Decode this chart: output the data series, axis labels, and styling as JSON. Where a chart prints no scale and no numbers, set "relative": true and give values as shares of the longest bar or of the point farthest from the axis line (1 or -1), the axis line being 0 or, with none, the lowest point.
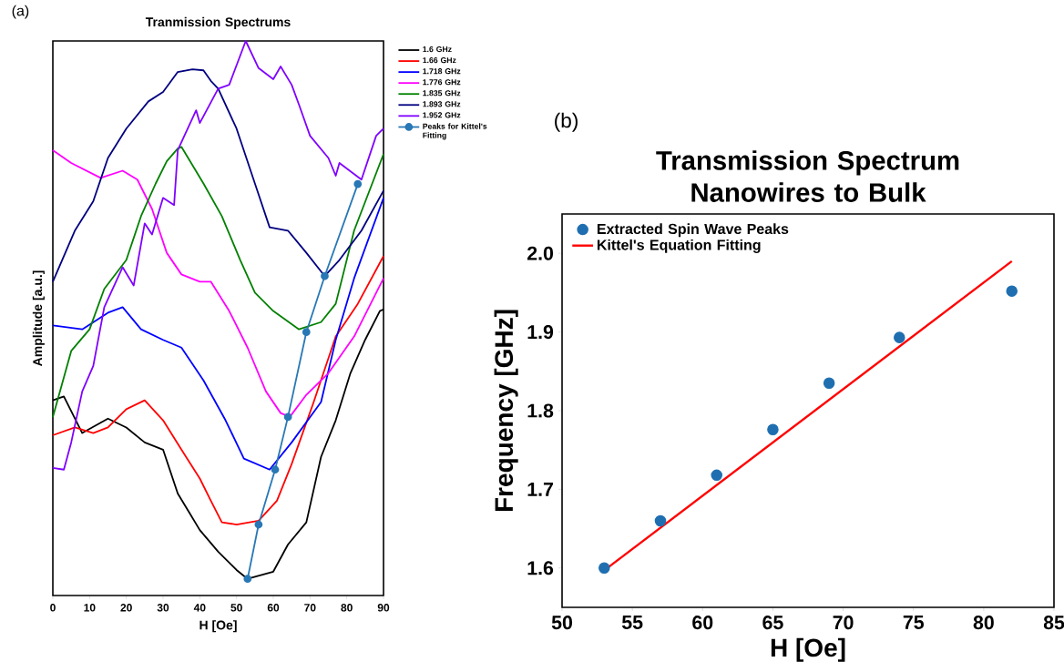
{
  "chart_data": [
    {
      "type": "line",
      "title": "Tranmission Spectrums",
      "xlabel": "H [Oe]",
      "ylabel": "Amplitude [a.u.]",
      "annotations": [
        "(a)"
      ],
      "relative": true,
      "tick_labels": "x",
      "legend": "right",
      "xlim": [
        0,
        90
      ],
      "xticks": [
        0,
        10,
        20,
        30,
        40,
        50,
        60,
        70,
        80,
        90
      ],
      "series": [
        {
          "name": "1.6 GHz",
          "color": "#000000",
          "x": [
            0,
            3,
            8,
            15,
            20,
            25,
            30,
            34,
            37,
            40,
            45,
            50,
            53,
            60,
            64,
            69,
            73,
            77,
            81,
            85,
            89,
            90
          ],
          "values": [
            0.352,
            0.359,
            0.293,
            0.319,
            0.303,
            0.276,
            0.263,
            0.184,
            0.151,
            0.118,
            0.079,
            0.046,
            0.03,
            0.043,
            0.092,
            0.132,
            0.25,
            0.316,
            0.401,
            0.461,
            0.513,
            0.516
          ]
        },
        {
          "name": "1.66 GHz",
          "color": "#ff0000",
          "x": [
            0,
            6,
            11,
            15,
            20,
            25,
            30,
            35,
            40,
            43,
            46,
            50,
            56,
            61,
            65,
            71,
            77,
            83,
            90
          ],
          "values": [
            0.289,
            0.303,
            0.293,
            0.303,
            0.336,
            0.352,
            0.316,
            0.263,
            0.211,
            0.171,
            0.132,
            0.128,
            0.135,
            0.171,
            0.237,
            0.349,
            0.467,
            0.526,
            0.612
          ]
        },
        {
          "name": "1.718 GHz",
          "color": "#0000ff",
          "x": [
            0,
            8,
            15,
            19,
            24,
            30,
            35,
            41,
            47,
            52,
            59,
            65,
            73,
            77,
            82,
            90
          ],
          "values": [
            0.487,
            0.48,
            0.51,
            0.52,
            0.48,
            0.461,
            0.447,
            0.388,
            0.316,
            0.247,
            0.227,
            0.276,
            0.349,
            0.461,
            0.572,
            0.717
          ]
        },
        {
          "name": "1.776 GHz",
          "color": "#ff00ff",
          "x": [
            0,
            5,
            13,
            19,
            23,
            27,
            31,
            35,
            40,
            43,
            48,
            53,
            58,
            62,
            64.5,
            69,
            75,
            82,
            90
          ],
          "values": [
            0.803,
            0.78,
            0.753,
            0.766,
            0.75,
            0.697,
            0.618,
            0.579,
            0.566,
            0.566,
            0.513,
            0.447,
            0.368,
            0.329,
            0.322,
            0.362,
            0.401,
            0.467,
            0.572
          ]
        },
        {
          "name": "1.835 GHz",
          "color": "#008000",
          "x": [
            0,
            5,
            10,
            14,
            20,
            24,
            28,
            31,
            34,
            35,
            41,
            46,
            51,
            55,
            60,
            67,
            73,
            77,
            82,
            90
          ],
          "values": [
            0.322,
            0.441,
            0.48,
            0.553,
            0.605,
            0.684,
            0.743,
            0.783,
            0.806,
            0.809,
            0.743,
            0.684,
            0.605,
            0.546,
            0.513,
            0.48,
            0.493,
            0.526,
            0.658,
            0.796
          ]
        },
        {
          "name": "1.893 GHz",
          "color": "#000080",
          "x": [
            0,
            6,
            11,
            15,
            20,
            26,
            30,
            34,
            38,
            41,
            43,
            45,
            50,
            55,
            59,
            64,
            69,
            74,
            78,
            84,
            90
          ],
          "values": [
            0.566,
            0.658,
            0.711,
            0.789,
            0.842,
            0.891,
            0.908,
            0.944,
            0.949,
            0.947,
            0.928,
            0.914,
            0.842,
            0.743,
            0.664,
            0.658,
            0.618,
            0.576,
            0.605,
            0.658,
            0.73
          ]
        },
        {
          "name": "1.952 GHz",
          "color": "#8000ff",
          "x": [
            0,
            3,
            5,
            8,
            11,
            14,
            19,
            22,
            25,
            27,
            30,
            33,
            34,
            39,
            40,
            45,
            48,
            52.5,
            56,
            60,
            62,
            65,
            67,
            70,
            75,
            77,
            78,
            84,
            88,
            90
          ],
          "values": [
            0.23,
            0.227,
            0.276,
            0.368,
            0.414,
            0.52,
            0.592,
            0.559,
            0.671,
            0.651,
            0.717,
            0.704,
            0.803,
            0.875,
            0.852,
            0.914,
            0.921,
            1.0,
            0.951,
            0.931,
            0.954,
            0.921,
            0.885,
            0.829,
            0.789,
            0.757,
            0.78,
            0.75,
            0.829,
            0.842
          ]
        },
        {
          "name": "Peaks for Kittel's Fitting",
          "color": "#2878b5",
          "marker": "circle",
          "x": [
            53,
            56,
            60.5,
            64,
            69,
            74,
            83
          ],
          "values": [
            0.03,
            0.128,
            0.227,
            0.322,
            0.475,
            0.576,
            0.742
          ]
        }
      ]
    },
    {
      "type": "scatter",
      "title": "Transmission Spectrum Nanowires to Bulk",
      "xlabel": "H [Oe]",
      "ylabel": "Frequency [GHz]",
      "annotations": [
        "(b)"
      ],
      "legend": "top left",
      "xlim": [
        50,
        85
      ],
      "xticks": [
        50,
        55,
        60,
        65,
        70,
        75,
        80,
        85
      ],
      "ylim": [
        1.55,
        2.05
      ],
      "yticks": [
        1.6,
        1.7,
        1.8,
        1.9,
        {
          "value": 2.0,
          "label": "2.0"
        }
      ],
      "series": [
        {
          "name": "Extracted Spin Wave Peaks",
          "color": "#1f6fb0",
          "type": "scatter",
          "marker": "circle",
          "x": [
            53,
            57,
            61,
            65,
            69,
            74,
            82
          ],
          "values": [
            1.6,
            1.66,
            1.718,
            1.776,
            1.835,
            1.893,
            1.952
          ]
        },
        {
          "name": "Kittel's Equation Fitting",
          "color": "#ff0000",
          "type": "line",
          "x": [
            53,
            82
          ],
          "values": [
            1.597,
            1.99
          ]
        }
      ]
    }
  ]
}
